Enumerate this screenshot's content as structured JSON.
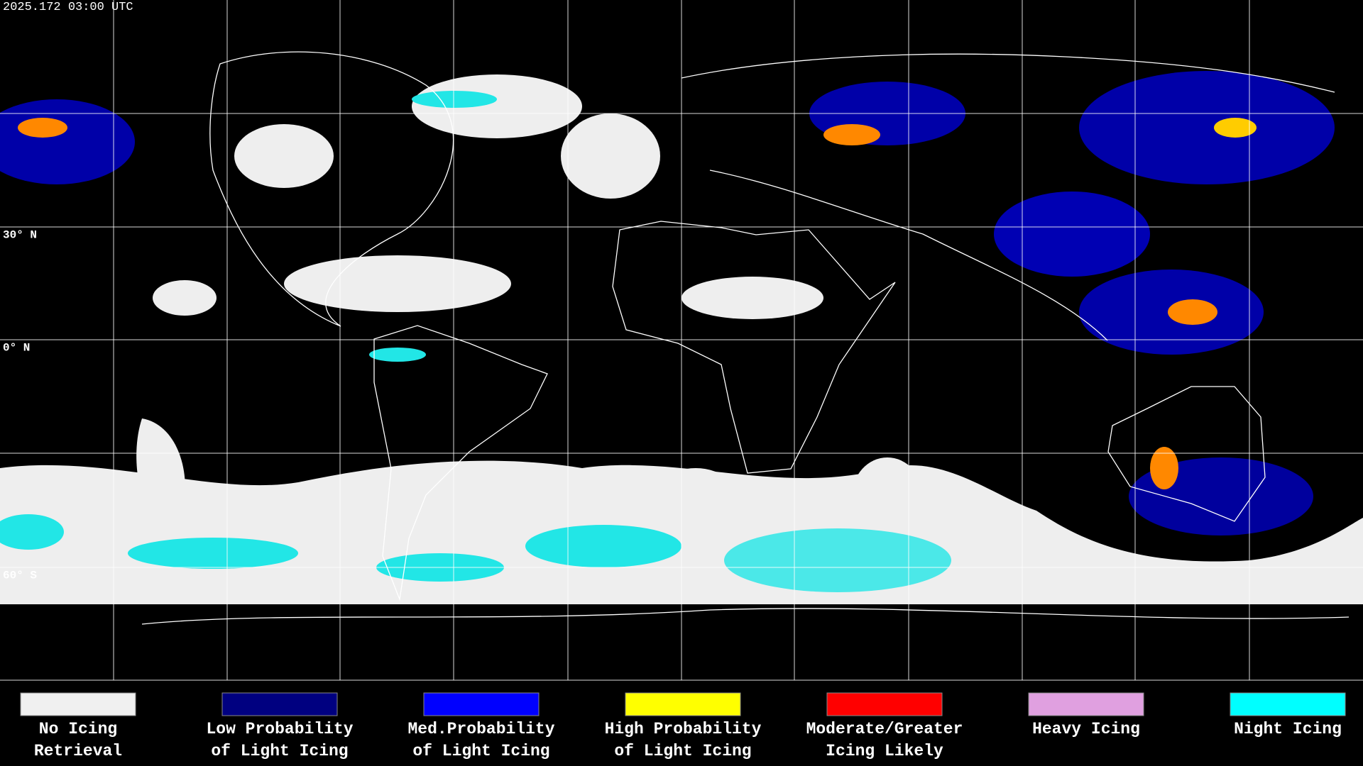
{
  "header": {
    "title": "2025.172 03:00 UTC"
  },
  "latitude_labels": [
    "30° N",
    "0° N",
    "60° S"
  ],
  "legend": {
    "items": [
      {
        "lines": [
          "No Icing",
          "Retrieval"
        ],
        "color": "#f0f0f0"
      },
      {
        "lines": [
          "Low Probability",
          "of Light Icing"
        ],
        "color": "#000080"
      },
      {
        "lines": [
          "Med.Probability",
          "of Light Icing"
        ],
        "color": "#0000ff"
      },
      {
        "lines": [
          "High Probability",
          "of Light Icing"
        ],
        "color": "#ffff00"
      },
      {
        "lines": [
          "Moderate/Greater",
          "Icing Likely"
        ],
        "color": "#ff0000"
      },
      {
        "lines": [
          "Heavy Icing"
        ],
        "color": "#e0a0e0"
      },
      {
        "lines": [
          "Night Icing"
        ],
        "color": "#00ffff"
      }
    ]
  }
}
